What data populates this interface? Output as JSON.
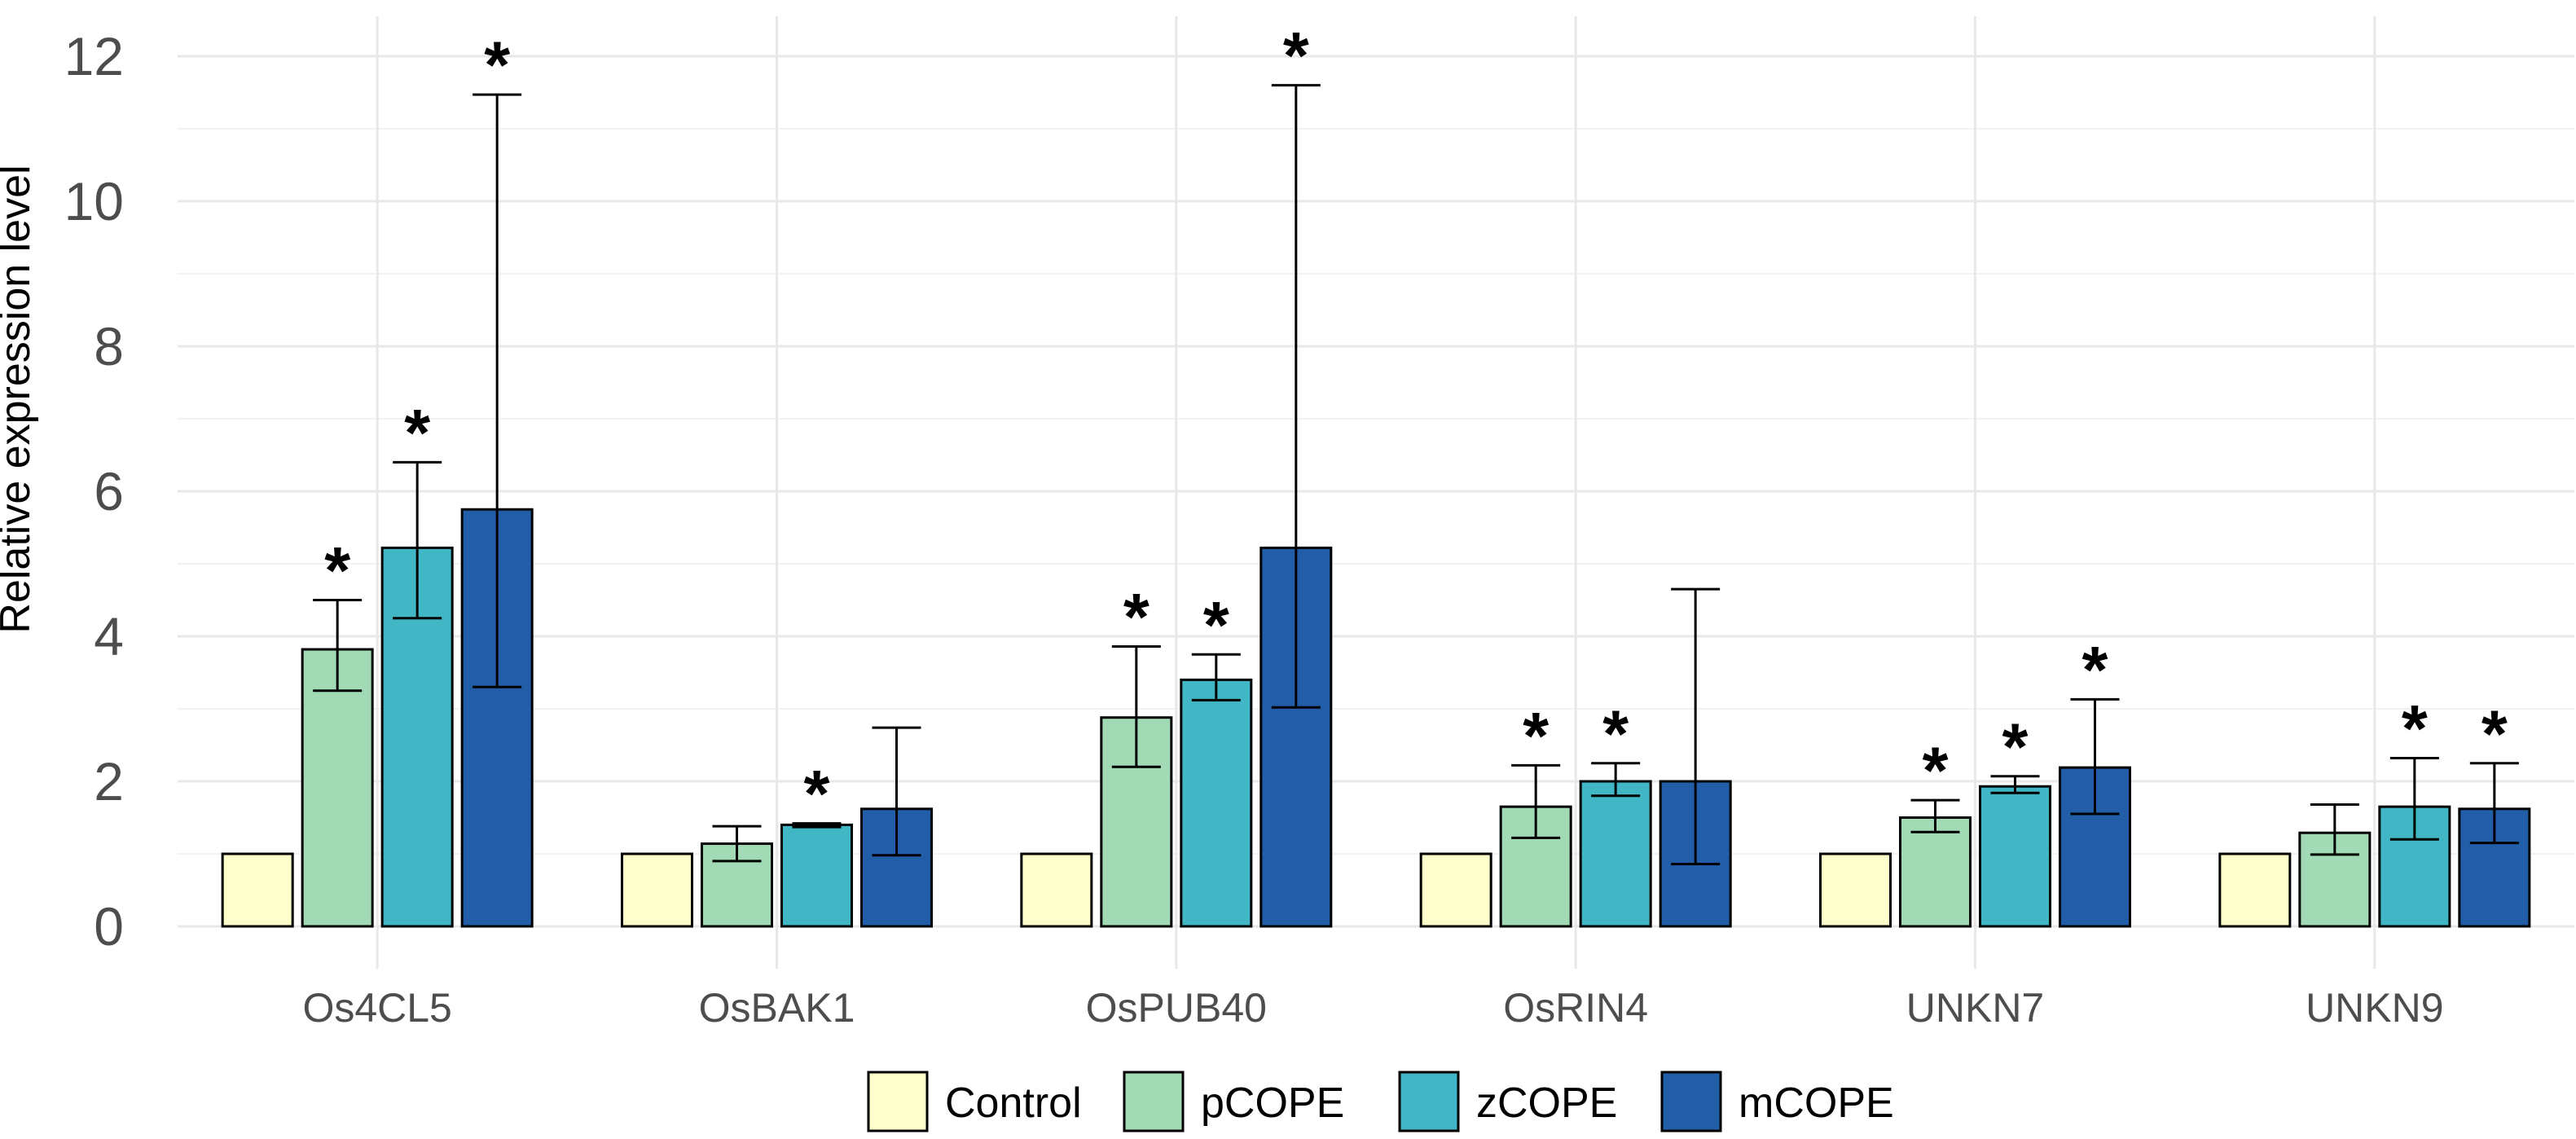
{
  "chart_data": {
    "type": "bar",
    "title": "",
    "xlabel": "",
    "ylabel": "Relative expression level",
    "ylim": [
      0,
      12.6
    ],
    "yticks": [
      0,
      2,
      4,
      6,
      8,
      10,
      12
    ],
    "categories": [
      "Os4CL5",
      "OsBAK1",
      "OsPUB40",
      "OsRIN4",
      "UNKN7",
      "UNKN9"
    ],
    "grid": true,
    "legend_position": "bottom",
    "series": [
      {
        "name": "Control",
        "color": "#FFFFCC",
        "values": [
          1,
          1,
          1,
          1,
          1,
          1
        ],
        "err_low": [
          null,
          null,
          null,
          null,
          null,
          null
        ],
        "err_high": [
          null,
          null,
          null,
          null,
          null,
          null
        ],
        "significant": [
          false,
          false,
          false,
          false,
          false,
          false
        ]
      },
      {
        "name": "pCOPE",
        "color": "#A1DAB4",
        "values": [
          3.82,
          1.14,
          2.88,
          1.65,
          1.5,
          1.29
        ],
        "err_low": [
          3.25,
          0.9,
          2.2,
          1.22,
          1.3,
          0.99
        ],
        "err_high": [
          4.5,
          1.38,
          3.86,
          2.22,
          1.74,
          1.68
        ],
        "significant": [
          true,
          false,
          true,
          true,
          true,
          false
        ]
      },
      {
        "name": "zCOPE",
        "color": "#41B6C4",
        "values": [
          5.22,
          1.4,
          3.4,
          2.0,
          1.93,
          1.65
        ],
        "err_low": [
          4.25,
          1.37,
          3.12,
          1.8,
          1.84,
          1.2
        ],
        "err_high": [
          6.4,
          1.42,
          3.75,
          2.25,
          2.07,
          2.32
        ],
        "significant": [
          true,
          true,
          true,
          true,
          true,
          true
        ]
      },
      {
        "name": "mCOPE",
        "color": "#225EA8",
        "values": [
          5.75,
          1.62,
          5.22,
          2.0,
          2.19,
          1.62
        ],
        "err_low": [
          3.3,
          0.98,
          3.02,
          0.86,
          1.55,
          1.15
        ],
        "err_high": [
          11.47,
          2.74,
          11.6,
          4.65,
          3.13,
          2.25
        ],
        "significant": [
          true,
          false,
          true,
          false,
          true,
          true
        ]
      }
    ],
    "significance_marker": "*"
  }
}
